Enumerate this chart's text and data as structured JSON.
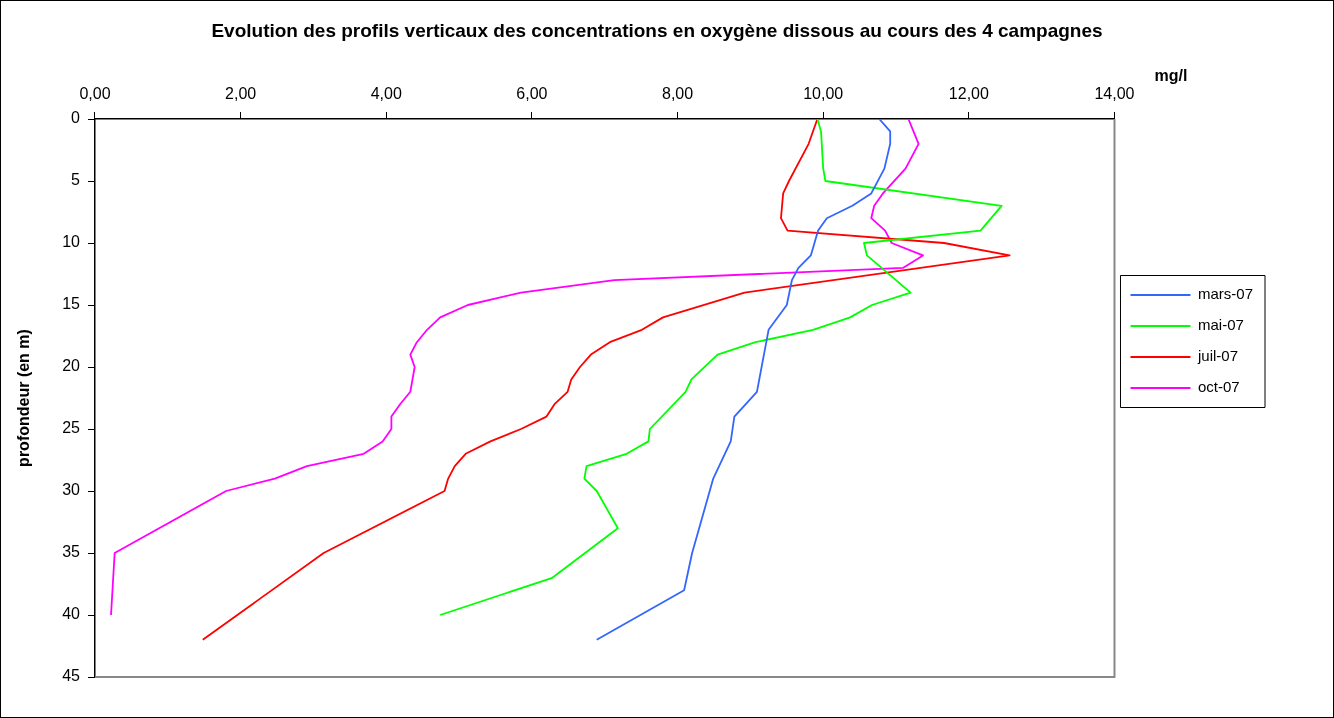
{
  "chart_data": {
    "type": "line",
    "title": "Evolution des profils verticaux des concentrations en oxygène dissous au cours des 4 campagnes",
    "xlabel": "mg/l",
    "ylabel": "profondeur (en m)",
    "xlim": [
      0,
      14
    ],
    "xticks": [
      {
        "value": 0,
        "label": "0,00"
      },
      {
        "value": 2,
        "label": "2,00"
      },
      {
        "value": 4,
        "label": "4,00"
      },
      {
        "value": 6,
        "label": "6,00"
      },
      {
        "value": 8,
        "label": "8,00"
      },
      {
        "value": 10,
        "label": "10,00"
      },
      {
        "value": 12,
        "label": "12,00"
      },
      {
        "value": 14,
        "label": "14,00"
      }
    ],
    "ylim": [
      45,
      0
    ],
    "yticks": [
      0,
      5,
      10,
      15,
      20,
      25,
      30,
      35,
      40,
      45
    ],
    "grid": false,
    "legend": "right",
    "marker": "none",
    "line_style": "solid",
    "series": [
      {
        "name": "mars-07",
        "color": "#3366ff",
        "x": [
          10.77,
          10.92,
          10.92,
          10.84,
          10.66,
          10.4,
          10.05,
          9.93,
          9.88,
          9.83,
          9.66,
          9.57,
          9.5,
          9.25,
          9.09,
          8.78,
          8.73,
          8.49,
          8.2,
          8.09,
          6.89
        ],
        "values": [
          0,
          1,
          2,
          4,
          6,
          7,
          8,
          9,
          10,
          11,
          12,
          13,
          15,
          17,
          22,
          24,
          26,
          29,
          35,
          38,
          42
        ]
      },
      {
        "name": "mai-07",
        "color": "#00ff00",
        "x": [
          9.92,
          9.97,
          10.0,
          10.03,
          12.45,
          12.16,
          10.56,
          10.6,
          11.2,
          10.67,
          10.37,
          9.86,
          9.07,
          8.55,
          8.19,
          8.11,
          7.62,
          7.6,
          7.3,
          6.75,
          6.72,
          6.89,
          7.18,
          6.28,
          4.74
        ],
        "values": [
          0,
          1,
          4,
          5,
          7,
          9,
          10,
          11,
          14,
          15,
          16,
          17,
          18,
          19,
          21,
          22,
          25,
          26,
          27,
          28,
          29,
          30,
          33,
          37,
          40
        ]
      },
      {
        "name": "juil-07",
        "color": "#ff0000",
        "x": [
          9.92,
          9.8,
          9.53,
          9.45,
          9.42,
          9.51,
          11.66,
          12.56,
          8.92,
          7.8,
          7.51,
          7.07,
          6.81,
          6.66,
          6.54,
          6.49,
          6.31,
          6.2,
          5.85,
          5.43,
          5.09,
          4.94,
          4.85,
          4.8,
          3.14,
          1.48
        ],
        "values": [
          0,
          2,
          5,
          6,
          8,
          9,
          10,
          11,
          14,
          16,
          17,
          18,
          19,
          20,
          21,
          22,
          23,
          24,
          25,
          26,
          27,
          28,
          29,
          30,
          35,
          42
        ]
      },
      {
        "name": "oct-07",
        "color": "#ff00ff",
        "x": [
          11.17,
          11.31,
          11.13,
          10.82,
          10.7,
          10.66,
          10.85,
          10.94,
          11.37,
          11.1,
          7.13,
          5.85,
          5.12,
          4.74,
          4.56,
          4.42,
          4.33,
          4.39,
          4.33,
          4.19,
          4.07,
          4.07,
          3.95,
          3.69,
          2.91,
          2.47,
          1.8,
          0.27,
          0.22
        ],
        "values": [
          0,
          2,
          4,
          6,
          7,
          8,
          9,
          10,
          11,
          12,
          13,
          14,
          15,
          16,
          17,
          18,
          19,
          20,
          22,
          23,
          24,
          25,
          26,
          27,
          28,
          29,
          30,
          35,
          40
        ]
      }
    ]
  }
}
